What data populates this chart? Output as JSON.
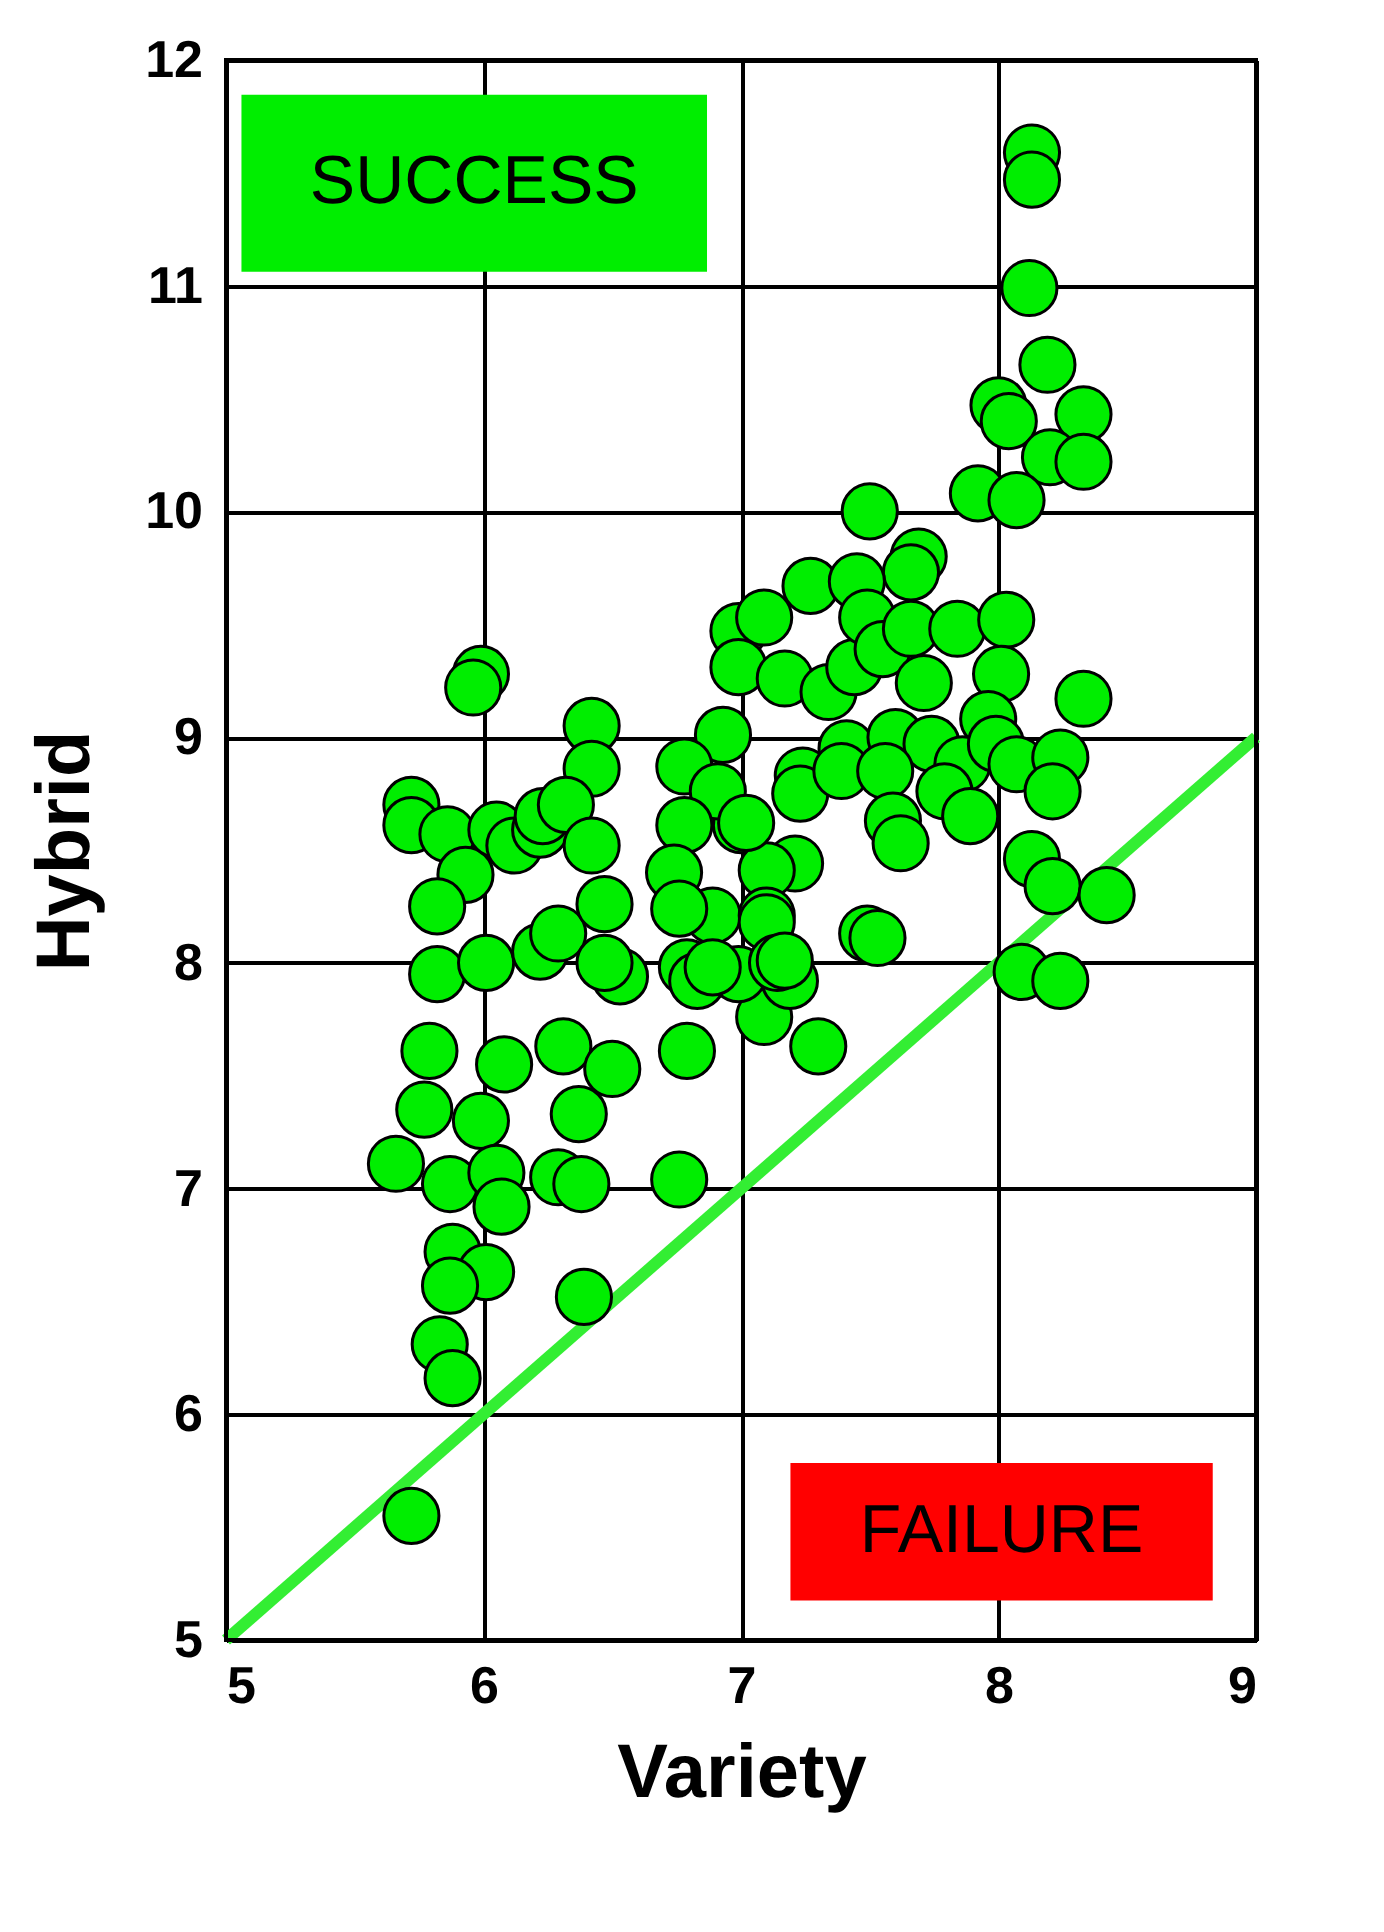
{
  "chart_data": {
    "type": "scatter",
    "xlabel": "Variety",
    "ylabel": "Hybrid",
    "xlim": [
      5,
      9
    ],
    "ylim": [
      5,
      12
    ],
    "xticks": [
      5,
      6,
      7,
      8,
      9
    ],
    "yticks": [
      5,
      6,
      7,
      8,
      9,
      10,
      11,
      12
    ],
    "grid": true,
    "marker": "circle",
    "annotations": [
      "SUCCESS",
      "FAILURE"
    ],
    "series": [
      {
        "type": "line",
        "color": "#33ee33",
        "x": [
          5,
          9
        ],
        "values": [
          5,
          9
        ],
        "marker": "none"
      },
      {
        "color": "#00ee00",
        "x": [
          8.13,
          8.13,
          8.12,
          8.19,
          8.0,
          8.04,
          8.33,
          8.2,
          8.33,
          7.92,
          8.07,
          7.5,
          7.69,
          7.66,
          7.27,
          7.45,
          6.99,
          7.09,
          6.99,
          7.17,
          7.34,
          7.44,
          7.49,
          7.55,
          7.66,
          7.71,
          7.84,
          8.03,
          8.01,
          8.33,
          7.96,
          6.93,
          7.24,
          7.23,
          7.41,
          7.39,
          7.6,
          7.74,
          7.56,
          7.86,
          7.99,
          8.07,
          8.24,
          8.21,
          7.79,
          7.89,
          7.59,
          7.62,
          7.0,
          7.21,
          7.1,
          8.13,
          8.21,
          8.42,
          6.89,
          7.1,
          7.49,
          7.53,
          8.09,
          8.24,
          7.09,
          7.3,
          6.79,
          6.99,
          6.79,
          7.19,
          5.99,
          5.96,
          6.42,
          6.42,
          5.72,
          5.72,
          5.86,
          5.93,
          5.82,
          6.05,
          6.12,
          6.22,
          6.23,
          6.32,
          6.42,
          5.82,
          6.01,
          6.22,
          6.29,
          6.47,
          6.53,
          6.47,
          5.79,
          6.08,
          6.31,
          6.5,
          5.77,
          5.99,
          6.37,
          5.66,
          5.87,
          6.05,
          6.07,
          6.29,
          6.38,
          6.76,
          6.78,
          6.91,
          6.78,
          7.02,
          6.74,
          6.76,
          6.83,
          6.89,
          7.1,
          7.14,
          7.17,
          5.88,
          6.01,
          5.87,
          5.83,
          5.88,
          6.39,
          5.72
        ],
        "values": [
          11.59,
          11.47,
          10.99,
          10.65,
          10.47,
          10.4,
          10.43,
          10.24,
          10.22,
          10.08,
          10.05,
          10.0,
          9.8,
          9.73,
          9.67,
          9.69,
          9.47,
          9.53,
          9.31,
          9.26,
          9.2,
          9.31,
          9.53,
          9.39,
          9.48,
          9.24,
          9.48,
          9.52,
          9.28,
          9.17,
          9.08,
          9.01,
          8.83,
          8.75,
          8.95,
          8.85,
          9.0,
          8.97,
          8.85,
          8.88,
          8.97,
          8.88,
          8.91,
          8.76,
          8.76,
          8.65,
          8.63,
          8.53,
          8.61,
          8.44,
          8.41,
          8.46,
          8.34,
          8.3,
          8.21,
          8.21,
          8.13,
          8.11,
          7.96,
          7.92,
          7.76,
          7.63,
          7.61,
          7.95,
          7.98,
          7.92,
          9.28,
          9.22,
          9.05,
          8.86,
          8.7,
          8.61,
          8.57,
          8.39,
          8.25,
          8.59,
          8.52,
          8.59,
          8.65,
          8.7,
          8.52,
          7.95,
          8.0,
          8.05,
          8.13,
          8.26,
          7.94,
          8.0,
          7.61,
          7.55,
          7.63,
          7.53,
          7.35,
          7.3,
          7.33,
          7.11,
          7.02,
          7.07,
          6.92,
          7.05,
          7.02,
          7.04,
          8.87,
          8.76,
          8.61,
          8.62,
          8.4,
          8.24,
          7.92,
          7.98,
          8.18,
          8.0,
          8.01,
          6.72,
          6.63,
          6.57,
          6.31,
          6.16,
          6.52,
          5.55
        ]
      }
    ]
  }
}
